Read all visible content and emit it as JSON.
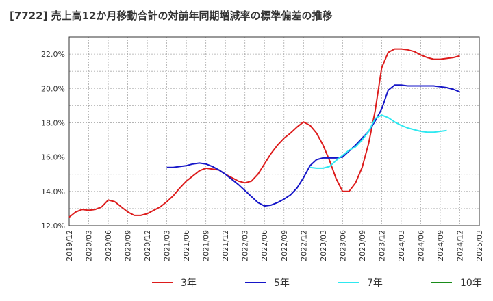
{
  "chart_data": {
    "type": "line",
    "title": "[7722]  売上高12か月移動合計の対前年同期増減率の標準偏差の推移",
    "xlabel": "",
    "ylabel": "",
    "ylim": [
      12.0,
      23.0
    ],
    "yticks": [
      "12.0%",
      "14.0%",
      "16.0%",
      "18.0%",
      "20.0%",
      "22.0%"
    ],
    "ytick_values": [
      12,
      14,
      16,
      18,
      20,
      22
    ],
    "xtick_labels": [
      "2019/12",
      "2020/03",
      "2020/06",
      "2020/09",
      "2020/12",
      "2021/03",
      "2021/06",
      "2021/09",
      "2021/12",
      "2022/03",
      "2022/06",
      "2022/09",
      "2022/12",
      "2023/03",
      "2023/06",
      "2023/09",
      "2023/12",
      "2024/03",
      "2024/06",
      "2024/09",
      "2024/12",
      "2025/03"
    ],
    "x_months_start": "2019/12",
    "grid": true,
    "legend_position": "bottom",
    "series": [
      {
        "name": "3年",
        "color": "#dd1c1c",
        "start": "2019/12",
        "values": [
          12.5,
          12.8,
          12.95,
          12.9,
          12.95,
          13.1,
          13.5,
          13.4,
          13.1,
          12.8,
          12.6,
          12.6,
          12.7,
          12.9,
          13.1,
          13.4,
          13.75,
          14.2,
          14.6,
          14.9,
          15.2,
          15.35,
          15.3,
          15.25,
          15.0,
          14.8,
          14.6,
          14.5,
          14.6,
          15.0,
          15.6,
          16.2,
          16.7,
          17.1,
          17.4,
          17.75,
          18.05,
          17.85,
          17.4,
          16.7,
          15.8,
          14.75,
          14.0,
          14.0,
          14.5,
          15.4,
          16.8,
          18.7,
          21.2,
          22.1,
          22.3,
          22.3,
          22.25,
          22.15,
          21.95,
          21.8,
          21.7,
          21.7,
          21.75,
          21.8,
          21.9
        ]
      },
      {
        "name": "5年",
        "color": "#1616c8",
        "start": "2021/03",
        "values": [
          15.4,
          15.4,
          15.45,
          15.5,
          15.6,
          15.65,
          15.6,
          15.45,
          15.25,
          15.0,
          14.7,
          14.4,
          14.05,
          13.7,
          13.35,
          13.15,
          13.2,
          13.35,
          13.55,
          13.8,
          14.2,
          14.8,
          15.5,
          15.85,
          15.95,
          15.95,
          15.95,
          16.0,
          16.35,
          16.7,
          17.1,
          17.5,
          18.1,
          18.8,
          19.9,
          20.2,
          20.2,
          20.15,
          20.15,
          20.15,
          20.15,
          20.15,
          20.1,
          20.05,
          19.95,
          19.8
        ]
      },
      {
        "name": "7年",
        "color": "#2ee8f0",
        "start": "2023/01",
        "values": [
          15.4,
          15.35,
          15.35,
          15.45,
          15.8,
          16.1,
          16.4,
          16.6,
          17.0,
          17.5,
          18.25,
          18.45,
          18.3,
          18.05,
          17.85,
          17.7,
          17.6,
          17.5,
          17.45,
          17.45,
          17.5,
          17.55
        ]
      },
      {
        "name": "10年",
        "color": "#1a8c1a",
        "start": "2025/03",
        "values": []
      }
    ]
  }
}
